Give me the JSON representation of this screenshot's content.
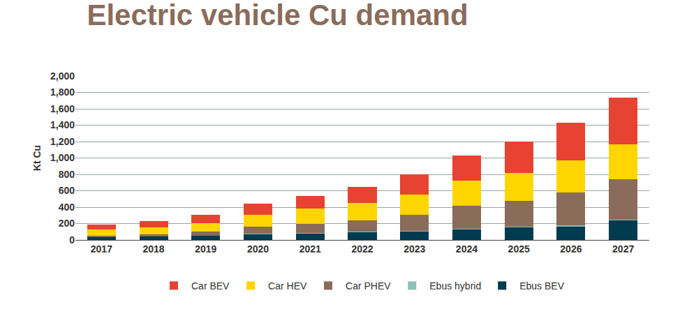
{
  "chart_data": {
    "type": "bar",
    "title": "Electric vehicle Cu demand",
    "y_label": "Kt Cu",
    "stacked": true,
    "grid": true,
    "legend": "bottom",
    "categories": [
      "2017",
      "2018",
      "2019",
      "2020",
      "2021",
      "2022",
      "2023",
      "2024",
      "2025",
      "2026",
      "2027"
    ],
    "series": [
      {
        "name": "Car BEV",
        "color": "#E84232",
        "values": [
          55,
          75,
          105,
          130,
          160,
          195,
          250,
          305,
          380,
          460,
          575
        ]
      },
      {
        "name": "Car HEV",
        "color": "#FFD500",
        "values": [
          80,
          85,
          105,
          150,
          185,
          215,
          245,
          305,
          340,
          390,
          425
        ]
      },
      {
        "name": "Car PHEV",
        "color": "#8B6B5A",
        "values": [
          15,
          25,
          45,
          85,
          110,
          140,
          195,
          280,
          320,
          405,
          490
        ]
      },
      {
        "name": "Ebus hybrid",
        "color": "#8CBFB5",
        "values": [
          5,
          5,
          5,
          5,
          5,
          10,
          10,
          10,
          10,
          10,
          15
        ]
      },
      {
        "name": "Ebus BEV",
        "color": "#003B4F",
        "values": [
          30,
          40,
          50,
          70,
          80,
          90,
          100,
          130,
          150,
          165,
          235
        ]
      }
    ],
    "ylim": [
      0,
      2000
    ],
    "yticks": [
      0,
      200,
      400,
      600,
      800,
      {
        "value": 1000,
        "label": "1,000"
      },
      {
        "value": 1200,
        "label": "1,200"
      },
      {
        "value": 1400,
        "label": "1,400"
      },
      {
        "value": 1600,
        "label": "1,600"
      },
      {
        "value": 1800,
        "label": "1,800"
      },
      {
        "value": 2000,
        "label": "2,000"
      }
    ]
  }
}
